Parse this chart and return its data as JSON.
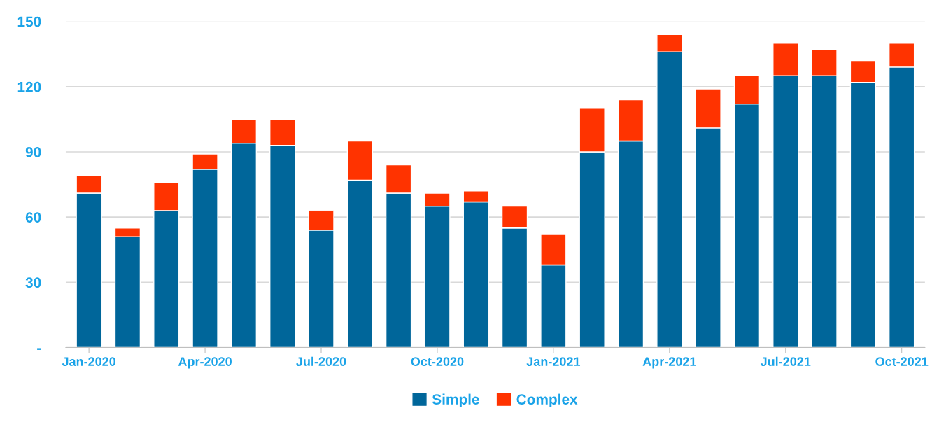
{
  "chart_data": {
    "type": "bar",
    "stacked": true,
    "categories": [
      "Jan-2020",
      null,
      null,
      "Apr-2020",
      null,
      null,
      "Jul-2020",
      null,
      null,
      "Oct-2020",
      null,
      null,
      "Jan-2021",
      null,
      null,
      "Apr-2021",
      null,
      null,
      "Jul-2021",
      null,
      null,
      "Oct-2021"
    ],
    "series": [
      {
        "name": "Simple",
        "color": "#00669a",
        "values": [
          71,
          51,
          63,
          82,
          94,
          93,
          54,
          77,
          71,
          65,
          67,
          55,
          38,
          90,
          95,
          136,
          101,
          112,
          125,
          125,
          122,
          129
        ]
      },
      {
        "name": "Complex",
        "color": "#ff3300",
        "values": [
          8,
          4,
          13,
          7,
          11,
          12,
          9,
          18,
          13,
          6,
          5,
          10,
          14,
          20,
          19,
          8,
          18,
          13,
          15,
          12,
          10,
          11
        ]
      }
    ],
    "ylim": [
      0,
      150
    ],
    "yticks": [
      {
        "value": 0,
        "label": "-"
      },
      30,
      60,
      90,
      120,
      150
    ],
    "grid": "y",
    "legend": "bottom"
  }
}
